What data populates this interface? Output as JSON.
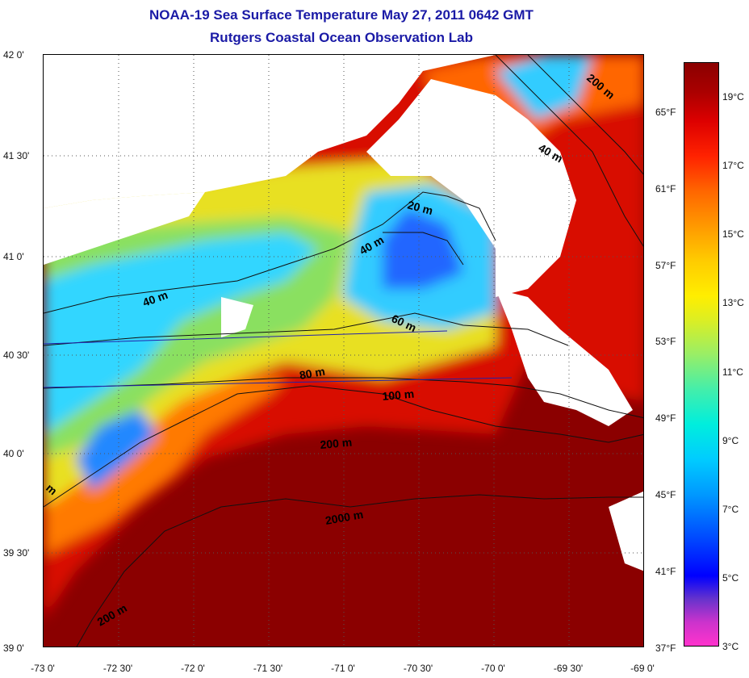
{
  "title": {
    "line1": "NOAA-19 Sea Surface Temperature May 27, 2011 0642 GMT",
    "line2": "Rutgers Coastal Ocean Observation Lab"
  },
  "map": {
    "lat_ticks": [
      "42 0'",
      "41 30'",
      "41 0'",
      "40 30'",
      "40 0'",
      "39 30'",
      "39 0'"
    ],
    "lon_ticks": [
      "-73 0'",
      "-72 30'",
      "-72 0'",
      "-71 30'",
      "-71 0'",
      "-70 30'",
      "-70 0'",
      "-69 30'",
      "-69 0'"
    ],
    "isobath_labels": [
      "20 m",
      "40 m",
      "40 m",
      "40 m",
      "60 m",
      "80 m",
      "100 m",
      "200 m",
      "200 m",
      "200 m",
      "2000 m",
      "m"
    ]
  },
  "colorbar": {
    "celsius_labels": [
      "19°C",
      "17°C",
      "15°C",
      "13°C",
      "11°C",
      "9°C",
      "7°C",
      "5°C",
      "3°C"
    ],
    "fahrenheit_labels": [
      "65°F",
      "61°F",
      "57°F",
      "53°F",
      "49°F",
      "45°F",
      "41°F",
      "37°F"
    ],
    "colors": [
      "#ff33cc",
      "#0000ff",
      "#00ccff",
      "#ffee00",
      "#ff6600",
      "#8b0000"
    ]
  }
}
